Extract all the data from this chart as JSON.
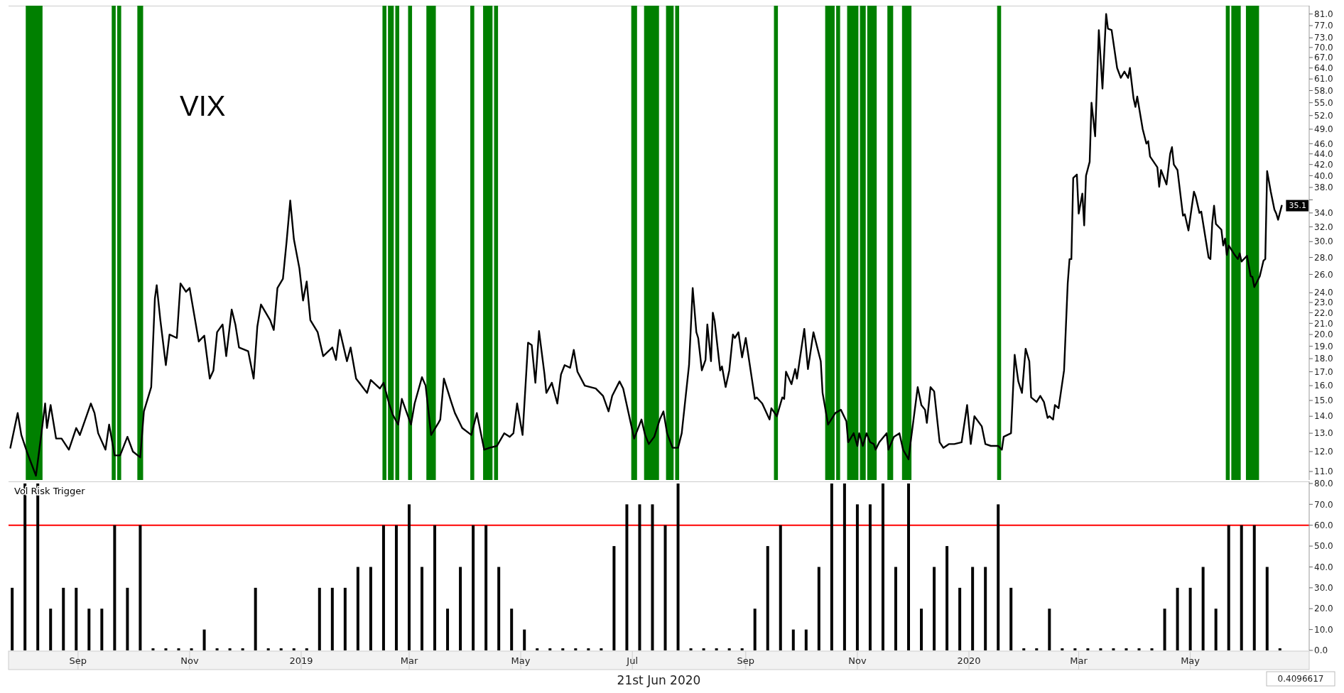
{
  "chart_data": [
    {
      "type": "line",
      "title": "VIX",
      "color": "#000000",
      "log": "y",
      "tick_labels": "y",
      "x": [
        "2018-07-26",
        "2018-07-30",
        "2018-08-01",
        "2018-08-04",
        "2018-08-09",
        "2018-08-12",
        "2018-08-14",
        "2018-08-15",
        "2018-08-17",
        "2018-08-20",
        "2018-08-23",
        "2018-08-27",
        "2018-08-31",
        "2018-09-02",
        "2018-09-08",
        "2018-09-10",
        "2018-09-12",
        "2018-09-16",
        "2018-09-18",
        "2018-09-21",
        "2018-09-24",
        "2018-09-28",
        "2018-10-01",
        "2018-10-05",
        "2018-10-07",
        "2018-10-11",
        "2018-10-13",
        "2018-10-14",
        "2018-10-16",
        "2018-10-19",
        "2018-10-21",
        "2018-10-25",
        "2018-10-27",
        "2018-10-30",
        "2018-11-01",
        "2018-11-06",
        "2018-11-09",
        "2018-11-12",
        "2018-11-14",
        "2018-11-16",
        "2018-11-19",
        "2018-11-21",
        "2018-11-24",
        "2018-11-26",
        "2018-11-28",
        "2018-12-03",
        "2018-12-06",
        "2018-12-08",
        "2018-12-10",
        "2018-12-15",
        "2018-12-17",
        "2018-12-19",
        "2018-12-22",
        "2018-12-24",
        "2018-12-26",
        "2018-12-28",
        "2018-12-31",
        "2019-01-02",
        "2019-01-04",
        "2019-01-06",
        "2019-01-10",
        "2019-01-13",
        "2019-01-18",
        "2019-01-20",
        "2019-01-22",
        "2019-01-26",
        "2019-01-28",
        "2019-01-31",
        "2019-02-06",
        "2019-02-08",
        "2019-02-13",
        "2019-02-15",
        "2019-02-18",
        "2019-02-20",
        "2019-02-23",
        "2019-02-25",
        "2019-03-02",
        "2019-03-04",
        "2019-03-08",
        "2019-03-10",
        "2019-03-13",
        "2019-03-17",
        "2019-03-18",
        "2019-03-20",
        "2019-03-24",
        "2019-03-26",
        "2019-03-30",
        "2019-04-04",
        "2019-04-07",
        "2019-04-11",
        "2019-04-14",
        "2019-04-18",
        "2019-04-22",
        "2019-04-25",
        "2019-04-27",
        "2019-04-29",
        "2019-05-02",
        "2019-05-05",
        "2019-05-07",
        "2019-05-09",
        "2019-05-11",
        "2019-05-14",
        "2019-05-15",
        "2019-05-18",
        "2019-05-21",
        "2019-05-23",
        "2019-05-25",
        "2019-05-28",
        "2019-05-30",
        "2019-06-01",
        "2019-06-05",
        "2019-06-11",
        "2019-06-15",
        "2019-06-18",
        "2019-06-20",
        "2019-06-24",
        "2019-06-26",
        "2019-07-02",
        "2019-07-06",
        "2019-07-08",
        "2019-07-10",
        "2019-07-13",
        "2019-07-16",
        "2019-07-18",
        "2019-07-20",
        "2019-07-23",
        "2019-07-26",
        "2019-07-28",
        "2019-08-01",
        "2019-08-03",
        "2019-08-05",
        "2019-08-06",
        "2019-08-08",
        "2019-08-10",
        "2019-08-11",
        "2019-08-13",
        "2019-08-14",
        "2019-08-15",
        "2019-08-18",
        "2019-08-19",
        "2019-08-21",
        "2019-08-23",
        "2019-08-25",
        "2019-08-26",
        "2019-08-28",
        "2019-08-30",
        "2019-09-01",
        "2019-09-06",
        "2019-09-07",
        "2019-09-10",
        "2019-09-14",
        "2019-09-15",
        "2019-09-18",
        "2019-09-21",
        "2019-09-22",
        "2019-09-23",
        "2019-09-26",
        "2019-09-28",
        "2019-09-29",
        "2019-10-03",
        "2019-10-05",
        "2019-10-08",
        "2019-10-12",
        "2019-10-13",
        "2019-10-16",
        "2019-10-20",
        "2019-10-23",
        "2019-10-26",
        "2019-10-27",
        "2019-10-30",
        "2019-11-01",
        "2019-11-02",
        "2019-11-04",
        "2019-11-06",
        "2019-11-08",
        "2019-11-10",
        "2019-11-11",
        "2019-11-13",
        "2019-11-17",
        "2019-11-18",
        "2019-11-21",
        "2019-11-24",
        "2019-11-26",
        "2019-11-29",
        "2019-11-30",
        "2019-12-04",
        "2019-12-06",
        "2019-12-08",
        "2019-12-09",
        "2019-12-11",
        "2019-12-13",
        "2019-12-16",
        "2019-12-18",
        "2019-12-21",
        "2019-12-24",
        "2019-12-28",
        "2019-12-31",
        "2020-01-02",
        "2020-01-04",
        "2020-01-08",
        "2020-01-10",
        "2020-01-13",
        "2020-01-17",
        "2020-01-19",
        "2020-01-20",
        "2020-01-24",
        "2020-01-26",
        "2020-01-28",
        "2020-01-30",
        "2020-02-01",
        "2020-02-03",
        "2020-02-04",
        "2020-02-07",
        "2020-02-09",
        "2020-02-11",
        "2020-02-13",
        "2020-02-14",
        "2020-02-16",
        "2020-02-17",
        "2020-02-19",
        "2020-02-22",
        "2020-02-24",
        "2020-02-25",
        "2020-02-26",
        "2020-02-27",
        "2020-02-29",
        "2020-03-01",
        "2020-03-03",
        "2020-03-04",
        "2020-03-05",
        "2020-03-07",
        "2020-03-08",
        "2020-03-10",
        "2020-03-12",
        "2020-03-14",
        "2020-03-16",
        "2020-03-17",
        "2020-03-19",
        "2020-03-22",
        "2020-03-24",
        "2020-03-26",
        "2020-03-28",
        "2020-03-29",
        "2020-03-31",
        "2020-04-01",
        "2020-04-02",
        "2020-04-05",
        "2020-04-07",
        "2020-04-08",
        "2020-04-09",
        "2020-04-13",
        "2020-04-14",
        "2020-04-15",
        "2020-04-18",
        "2020-04-20",
        "2020-04-21",
        "2020-04-22",
        "2020-04-24",
        "2020-04-27",
        "2020-04-28",
        "2020-04-30",
        "2020-05-03",
        "2020-05-04",
        "2020-05-06",
        "2020-05-07",
        "2020-05-11",
        "2020-05-12",
        "2020-05-13",
        "2020-05-14",
        "2020-05-15",
        "2020-05-18",
        "2020-05-19",
        "2020-05-20",
        "2020-05-21",
        "2020-05-22",
        "2020-05-25",
        "2020-05-27",
        "2020-05-28",
        "2020-05-29",
        "2020-06-01",
        "2020-06-03",
        "2020-06-04",
        "2020-06-05",
        "2020-06-08",
        "2020-06-10",
        "2020-06-11",
        "2020-06-12",
        "2020-06-14",
        "2020-06-16",
        "2020-06-17",
        "2020-06-18",
        "2020-06-20"
      ],
      "values": [
        12.2,
        14.2,
        12.9,
        12.0,
        10.8,
        13.0,
        14.8,
        13.3,
        14.7,
        12.7,
        12.7,
        12.1,
        13.3,
        12.9,
        14.8,
        14.2,
        13.0,
        12.1,
        13.5,
        11.8,
        11.8,
        12.8,
        12.0,
        11.7,
        14.3,
        15.9,
        23.4,
        24.8,
        21.3,
        17.5,
        20.0,
        19.7,
        25.0,
        24.1,
        24.5,
        19.4,
        19.9,
        16.5,
        17.1,
        20.2,
        20.9,
        18.2,
        22.3,
        20.9,
        18.9,
        18.6,
        16.5,
        20.7,
        22.8,
        21.3,
        20.4,
        24.5,
        25.5,
        30.0,
        35.9,
        30.3,
        26.7,
        23.2,
        25.2,
        21.3,
        20.2,
        18.2,
        18.9,
        17.9,
        20.4,
        17.8,
        18.9,
        16.5,
        15.5,
        16.4,
        15.8,
        16.2,
        14.8,
        14.1,
        13.5,
        15.1,
        13.5,
        14.8,
        16.6,
        16.0,
        12.9,
        13.6,
        13.8,
        16.5,
        14.9,
        14.2,
        13.3,
        12.9,
        14.2,
        12.1,
        12.2,
        12.3,
        13.0,
        12.8,
        13.0,
        14.8,
        12.9,
        19.3,
        19.1,
        16.2,
        20.3,
        16.8,
        15.5,
        16.2,
        14.8,
        16.8,
        17.5,
        17.3,
        18.7,
        17.0,
        16.0,
        15.8,
        15.3,
        14.3,
        15.3,
        16.3,
        15.8,
        12.7,
        13.8,
        12.9,
        12.4,
        12.8,
        13.8,
        14.3,
        13.0,
        12.2,
        12.2,
        13.0,
        17.5,
        24.5,
        20.2,
        19.7,
        17.1,
        17.9,
        20.9,
        17.8,
        22.0,
        21.2,
        17.1,
        17.4,
        15.9,
        17.1,
        20.0,
        19.7,
        20.2,
        18.1,
        19.7,
        15.1,
        15.2,
        14.8,
        13.8,
        14.5,
        14.0,
        15.2,
        15.1,
        17.0,
        16.1,
        17.2,
        16.5,
        20.5,
        17.2,
        20.2,
        17.8,
        15.5,
        13.5,
        14.2,
        14.4,
        13.7,
        12.5,
        13.0,
        12.3,
        13.0,
        12.3,
        13.0,
        12.5,
        12.4,
        12.1,
        12.5,
        13.0,
        12.1,
        12.8,
        13.0,
        12.1,
        11.6,
        12.4,
        15.9,
        14.7,
        14.4,
        13.6,
        15.9,
        15.6,
        12.5,
        12.2,
        12.4,
        12.4,
        12.5,
        14.7,
        12.4,
        14.0,
        13.4,
        12.4,
        12.3,
        12.3,
        12.1,
        12.8,
        13.0,
        18.3,
        16.3,
        15.5,
        18.8,
        17.8,
        15.2,
        14.9,
        15.3,
        14.9,
        13.9,
        14.0,
        13.8,
        14.7,
        14.5,
        17.1,
        25.0,
        27.8,
        27.8,
        39.6,
        40.2,
        33.9,
        37.0,
        32.2,
        40.0,
        42.5,
        55.0,
        47.5,
        75.5,
        58.5,
        81.0,
        76.0,
        75.5,
        64.0,
        61.3,
        63.0,
        61.3,
        64.0,
        56.0,
        54.0,
        56.5,
        49.0,
        46.0,
        46.5,
        43.5,
        41.5,
        38.1,
        41.0,
        38.5,
        44.0,
        45.3,
        42.0,
        41.0,
        33.6,
        33.8,
        31.5,
        37.3,
        36.5,
        34.0,
        34.2,
        28.0,
        27.8,
        32.5,
        35.1,
        32.4,
        31.6,
        29.5,
        30.4,
        28.3,
        29.5,
        28.4,
        27.8,
        28.5,
        27.5,
        28.2,
        25.8,
        25.7,
        24.6,
        25.8,
        27.6,
        27.8,
        40.8,
        37.3,
        34.5,
        33.9,
        33.0,
        35.1
      ],
      "xlim": [
        "2018-07-25",
        "2020-07-05"
      ],
      "ylim": [
        10.6,
        84
      ],
      "yticks": [
        {
          "value": 11,
          "label": "11.0"
        },
        {
          "value": 12,
          "label": "12.0"
        },
        {
          "value": 13,
          "label": "13.0"
        },
        {
          "value": 14,
          "label": "14.0"
        },
        {
          "value": 15,
          "label": "15.0"
        },
        {
          "value": 16,
          "label": "16.0"
        },
        {
          "value": 17,
          "label": "17.0"
        },
        {
          "value": 18,
          "label": "18.0"
        },
        {
          "value": 19,
          "label": "19.0"
        },
        {
          "value": 20,
          "label": "20.0"
        },
        {
          "value": 21,
          "label": "21.0"
        },
        {
          "value": 22,
          "label": "22.0"
        },
        {
          "value": 23,
          "label": "23.0"
        },
        {
          "value": 24,
          "label": "24.0"
        },
        {
          "value": 26,
          "label": "26.0"
        },
        {
          "value": 28,
          "label": "28.0"
        },
        {
          "value": 30,
          "label": "30.0"
        },
        {
          "value": 32,
          "label": "32.0"
        },
        {
          "value": 34,
          "label": "34.0"
        },
        {
          "value": 36,
          "label": null
        },
        {
          "value": 38,
          "label": "38.0"
        },
        {
          "value": 40,
          "label": "40.0"
        },
        {
          "value": 42,
          "label": "42.0"
        },
        {
          "value": 44,
          "label": "44.0"
        },
        {
          "value": 46,
          "label": "46.0"
        },
        {
          "value": 49,
          "label": "49.0"
        },
        {
          "value": 52,
          "label": "52.0"
        },
        {
          "value": 55,
          "label": "55.0"
        },
        {
          "value": 58,
          "label": "58.0"
        },
        {
          "value": 61,
          "label": "61.0"
        },
        {
          "value": 64,
          "label": "64.0"
        },
        {
          "value": 67,
          "label": "67.0"
        },
        {
          "value": 70,
          "label": "70.0"
        },
        {
          "value": 73,
          "label": "73.0"
        },
        {
          "value": 77,
          "label": "77.0"
        },
        {
          "value": 81,
          "label": "81.0"
        }
      ],
      "bands": [
        {
          "axis": "x",
          "from": "2018-08-04",
          "to": "2018-08-12",
          "color": "#008000"
        },
        {
          "axis": "x",
          "from": "2018-09-20",
          "to": "2018-09-21",
          "color": "#008000"
        },
        {
          "axis": "x",
          "from": "2018-09-23",
          "to": "2018-09-24",
          "color": "#008000"
        },
        {
          "axis": "x",
          "from": "2018-10-04",
          "to": "2018-10-06",
          "color": "#008000"
        },
        {
          "axis": "x",
          "from": "2019-02-15",
          "to": "2019-02-16",
          "color": "#008000"
        },
        {
          "axis": "x",
          "from": "2019-02-18",
          "to": "2019-02-20",
          "color": "#008000"
        },
        {
          "axis": "x",
          "from": "2019-02-22",
          "to": "2019-02-23",
          "color": "#008000"
        },
        {
          "axis": "x",
          "from": "2019-03-01",
          "to": "2019-03-02",
          "color": "#008000"
        },
        {
          "axis": "x",
          "from": "2019-03-11",
          "to": "2019-03-15",
          "color": "#008000"
        },
        {
          "axis": "x",
          "from": "2019-04-04",
          "to": "2019-04-05",
          "color": "#008000"
        },
        {
          "axis": "x",
          "from": "2019-04-11",
          "to": "2019-04-15",
          "color": "#008000"
        },
        {
          "axis": "x",
          "from": "2019-04-17",
          "to": "2019-04-18",
          "color": "#008000"
        },
        {
          "axis": "x",
          "from": "2019-07-01",
          "to": "2019-07-03",
          "color": "#008000"
        },
        {
          "axis": "x",
          "from": "2019-07-08",
          "to": "2019-07-15",
          "color": "#008000"
        },
        {
          "axis": "x",
          "from": "2019-07-20",
          "to": "2019-07-23",
          "color": "#008000"
        },
        {
          "axis": "x",
          "from": "2019-07-25",
          "to": "2019-07-26",
          "color": "#008000"
        },
        {
          "axis": "x",
          "from": "2019-09-17",
          "to": "2019-09-18",
          "color": "#008000"
        },
        {
          "axis": "x",
          "from": "2019-10-15",
          "to": "2019-10-19",
          "color": "#008000"
        },
        {
          "axis": "x",
          "from": "2019-10-21",
          "to": "2019-10-22",
          "color": "#008000"
        },
        {
          "axis": "x",
          "from": "2019-10-27",
          "to": "2019-11-01",
          "color": "#008000"
        },
        {
          "axis": "x",
          "from": "2019-11-03",
          "to": "2019-11-05",
          "color": "#008000"
        },
        {
          "axis": "x",
          "from": "2019-11-07",
          "to": "2019-11-11",
          "color": "#008000"
        },
        {
          "axis": "x",
          "from": "2019-11-18",
          "to": "2019-11-20",
          "color": "#008000"
        },
        {
          "axis": "x",
          "from": "2019-11-26",
          "to": "2019-11-30",
          "color": "#008000"
        },
        {
          "axis": "x",
          "from": "2020-01-17",
          "to": "2020-01-18",
          "color": "#008000"
        },
        {
          "axis": "x",
          "from": "2020-05-21",
          "to": "2020-05-22",
          "color": "#008000"
        },
        {
          "axis": "x",
          "from": "2020-05-24",
          "to": "2020-05-28",
          "color": "#008000"
        },
        {
          "axis": "x",
          "from": "2020-06-01",
          "to": "2020-06-07",
          "color": "#008000"
        }
      ],
      "annotations": [
        "35.1"
      ]
    },
    {
      "type": "bar",
      "title": "Vol Risk Trigger",
      "color": "#000000",
      "x": [
        "2018-07-27",
        "2018-08-03",
        "2018-08-10",
        "2018-08-17",
        "2018-08-24",
        "2018-08-31",
        "2018-09-07",
        "2018-09-14",
        "2018-09-21",
        "2018-09-28",
        "2018-10-05",
        "2018-10-12",
        "2018-10-19",
        "2018-10-26",
        "2018-11-02",
        "2018-11-09",
        "2018-11-16",
        "2018-11-23",
        "2018-11-30",
        "2018-12-07",
        "2018-12-14",
        "2018-12-21",
        "2018-12-28",
        "2019-01-04",
        "2019-01-11",
        "2019-01-18",
        "2019-01-25",
        "2019-02-01",
        "2019-02-08",
        "2019-02-15",
        "2019-02-22",
        "2019-03-01",
        "2019-03-08",
        "2019-03-15",
        "2019-03-22",
        "2019-03-29",
        "2019-04-05",
        "2019-04-12",
        "2019-04-19",
        "2019-04-26",
        "2019-05-03",
        "2019-05-10",
        "2019-05-17",
        "2019-05-24",
        "2019-05-31",
        "2019-06-07",
        "2019-06-14",
        "2019-06-21",
        "2019-06-28",
        "2019-07-05",
        "2019-07-12",
        "2019-07-19",
        "2019-07-26",
        "2019-08-02",
        "2019-08-09",
        "2019-08-16",
        "2019-08-23",
        "2019-08-30",
        "2019-09-06",
        "2019-09-13",
        "2019-09-20",
        "2019-09-27",
        "2019-10-04",
        "2019-10-11",
        "2019-10-18",
        "2019-10-25",
        "2019-11-01",
        "2019-11-08",
        "2019-11-15",
        "2019-11-22",
        "2019-11-29",
        "2019-12-06",
        "2019-12-13",
        "2019-12-20",
        "2019-12-27",
        "2020-01-03",
        "2020-01-10",
        "2020-01-17",
        "2020-01-24",
        "2020-01-31",
        "2020-02-07",
        "2020-02-14",
        "2020-02-21",
        "2020-02-28",
        "2020-03-06",
        "2020-03-13",
        "2020-03-20",
        "2020-03-27",
        "2020-04-03",
        "2020-04-10",
        "2020-04-17",
        "2020-04-24",
        "2020-05-01",
        "2020-05-08",
        "2020-05-15",
        "2020-05-22",
        "2020-05-29",
        "2020-06-05",
        "2020-06-12",
        "2020-06-19"
      ],
      "values": [
        30,
        80,
        80,
        20,
        30,
        30,
        20,
        20,
        60,
        30,
        60,
        1,
        1,
        1,
        1,
        10,
        1,
        1,
        1,
        30,
        1,
        1,
        1,
        1,
        30,
        30,
        30,
        40,
        40,
        60,
        60,
        70,
        40,
        60,
        20,
        40,
        60,
        60,
        40,
        20,
        10,
        1,
        1,
        1,
        1,
        1,
        1,
        50,
        70,
        70,
        70,
        60,
        80,
        1,
        1,
        1,
        1,
        1,
        20,
        50,
        60,
        10,
        10,
        40,
        80,
        80,
        70,
        70,
        80,
        40,
        80,
        20,
        40,
        50,
        30,
        40,
        40,
        70,
        30,
        1,
        1,
        20,
        1,
        1,
        1,
        1,
        1,
        1,
        1,
        1,
        20,
        30,
        30,
        40,
        20,
        60,
        60,
        60,
        40,
        1
      ],
      "xlim": [
        "2018-07-25",
        "2020-07-05"
      ],
      "xticks": [
        {
          "value": "2018-09-01",
          "label": "Sep"
        },
        {
          "value": "2018-11-01",
          "label": "Nov"
        },
        {
          "value": "2019-01-01",
          "label": "2019"
        },
        {
          "value": "2019-03-01",
          "label": "Mar"
        },
        {
          "value": "2019-05-01",
          "label": "May"
        },
        {
          "value": "2019-07-01",
          "label": "Jul"
        },
        {
          "value": "2019-09-01",
          "label": "Sep"
        },
        {
          "value": "2019-11-01",
          "label": "Nov"
        },
        {
          "value": "2020-01-01",
          "label": "2020"
        },
        {
          "value": "2020-03-01",
          "label": "Mar"
        },
        {
          "value": "2020-05-01",
          "label": "May"
        }
      ],
      "ylim": [
        0,
        81
      ],
      "yticks": [
        {
          "value": 0,
          "label": "0.0"
        },
        {
          "value": 10,
          "label": "10.0"
        },
        {
          "value": 20,
          "label": "20.0"
        },
        {
          "value": 30,
          "label": "30.0"
        },
        {
          "value": 40,
          "label": "40.0"
        },
        {
          "value": 50,
          "label": "50.0"
        },
        {
          "value": 60,
          "label": "60.0"
        },
        {
          "value": 70,
          "label": "70.0"
        },
        {
          "value": 80,
          "label": "80.0"
        }
      ],
      "ref_lines": [
        {
          "axis": "y",
          "value": 60,
          "color": "#ff0000"
        }
      ],
      "annotations": [
        "21st Jun 2020",
        "0.4096617"
      ]
    }
  ]
}
